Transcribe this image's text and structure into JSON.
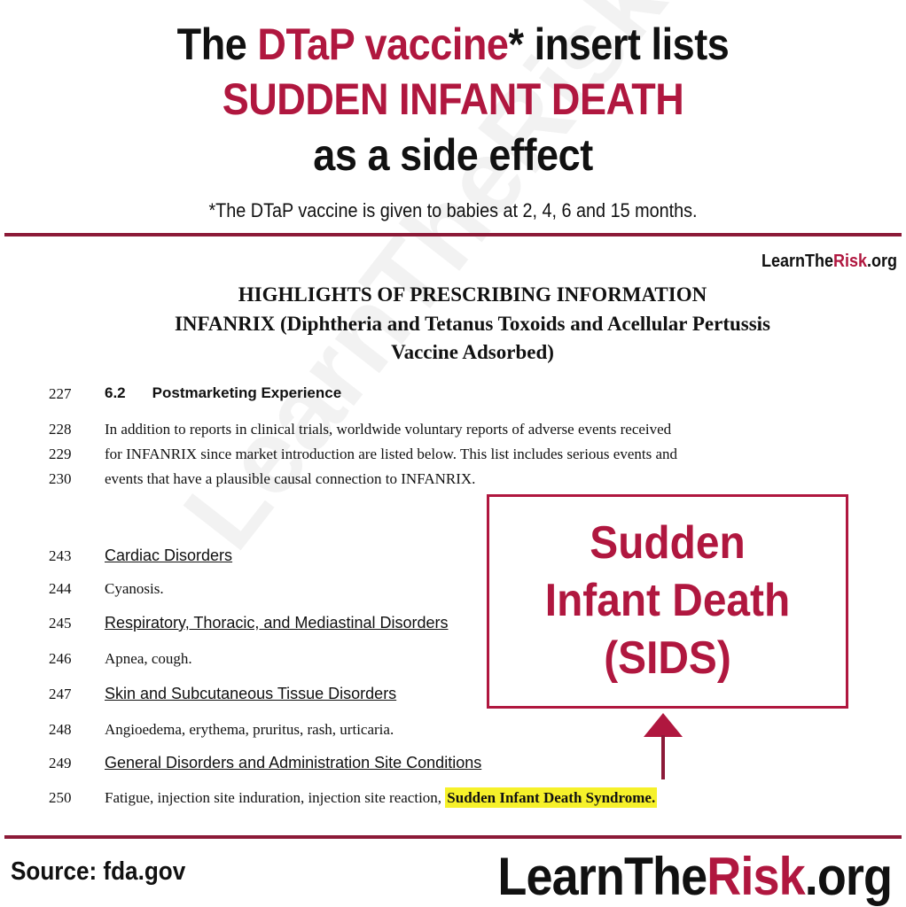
{
  "header": {
    "line1_a": "The ",
    "line1_b": "DTaP vaccine",
    "line1_c": "* insert lists",
    "line2": "SUDDEN INFANT DEATH",
    "line3": "as a side effect",
    "footnote": "*The DTaP vaccine is given to babies at 2, 4, 6 and 15 months."
  },
  "brand_small": {
    "a": "LearnThe",
    "b": "Risk",
    "c": ".org"
  },
  "watermark": "LearnTheRisk.org",
  "document": {
    "heading": [
      "HIGHLIGHTS OF PRESCRIBING INFORMATION",
      "INFANRIX (Diphtheria and Tetanus Toxoids and Acellular Pertussis",
      "Vaccine Adsorbed)"
    ],
    "section_number": "6.2",
    "section_title": "Postmarketing Experience",
    "lines": [
      {
        "num": "227"
      },
      {
        "num": "228",
        "text": "In addition to reports in clinical trials, worldwide voluntary reports of adverse events received"
      },
      {
        "num": "229",
        "text": "for INFANRIX since market introduction are listed below. This list includes serious events and"
      },
      {
        "num": "230",
        "text": "events that have a plausible causal connection to INFANRIX."
      },
      {
        "num": "243",
        "text": "Cardiac Disorders"
      },
      {
        "num": "244",
        "text": "Cyanosis."
      },
      {
        "num": "245",
        "text": "Respiratory, Thoracic, and Mediastinal Disorders"
      },
      {
        "num": "246",
        "text": "Apnea, cough."
      },
      {
        "num": "247",
        "text": "Skin and Subcutaneous Tissue Disorders"
      },
      {
        "num": "248",
        "text": "Angioedema, erythema, pruritus, rash, urticaria."
      },
      {
        "num": "249",
        "text": "General Disorders and Administration Site Conditions"
      },
      {
        "num": "250",
        "text": "Fatigue, injection site induration, injection site reaction, ",
        "highlight": "Sudden Infant Death Syndrome."
      }
    ]
  },
  "callout": {
    "line1": "Sudden",
    "line2": "Infant Death",
    "line3": "(SIDS)"
  },
  "footer": {
    "source": "Source: fda.gov",
    "brand": {
      "a": "LearnThe",
      "b": "Risk",
      "c": ".org"
    }
  },
  "colors": {
    "accent": "#b0173f",
    "rule": "#8c1a38",
    "highlight": "#f6f12a"
  }
}
